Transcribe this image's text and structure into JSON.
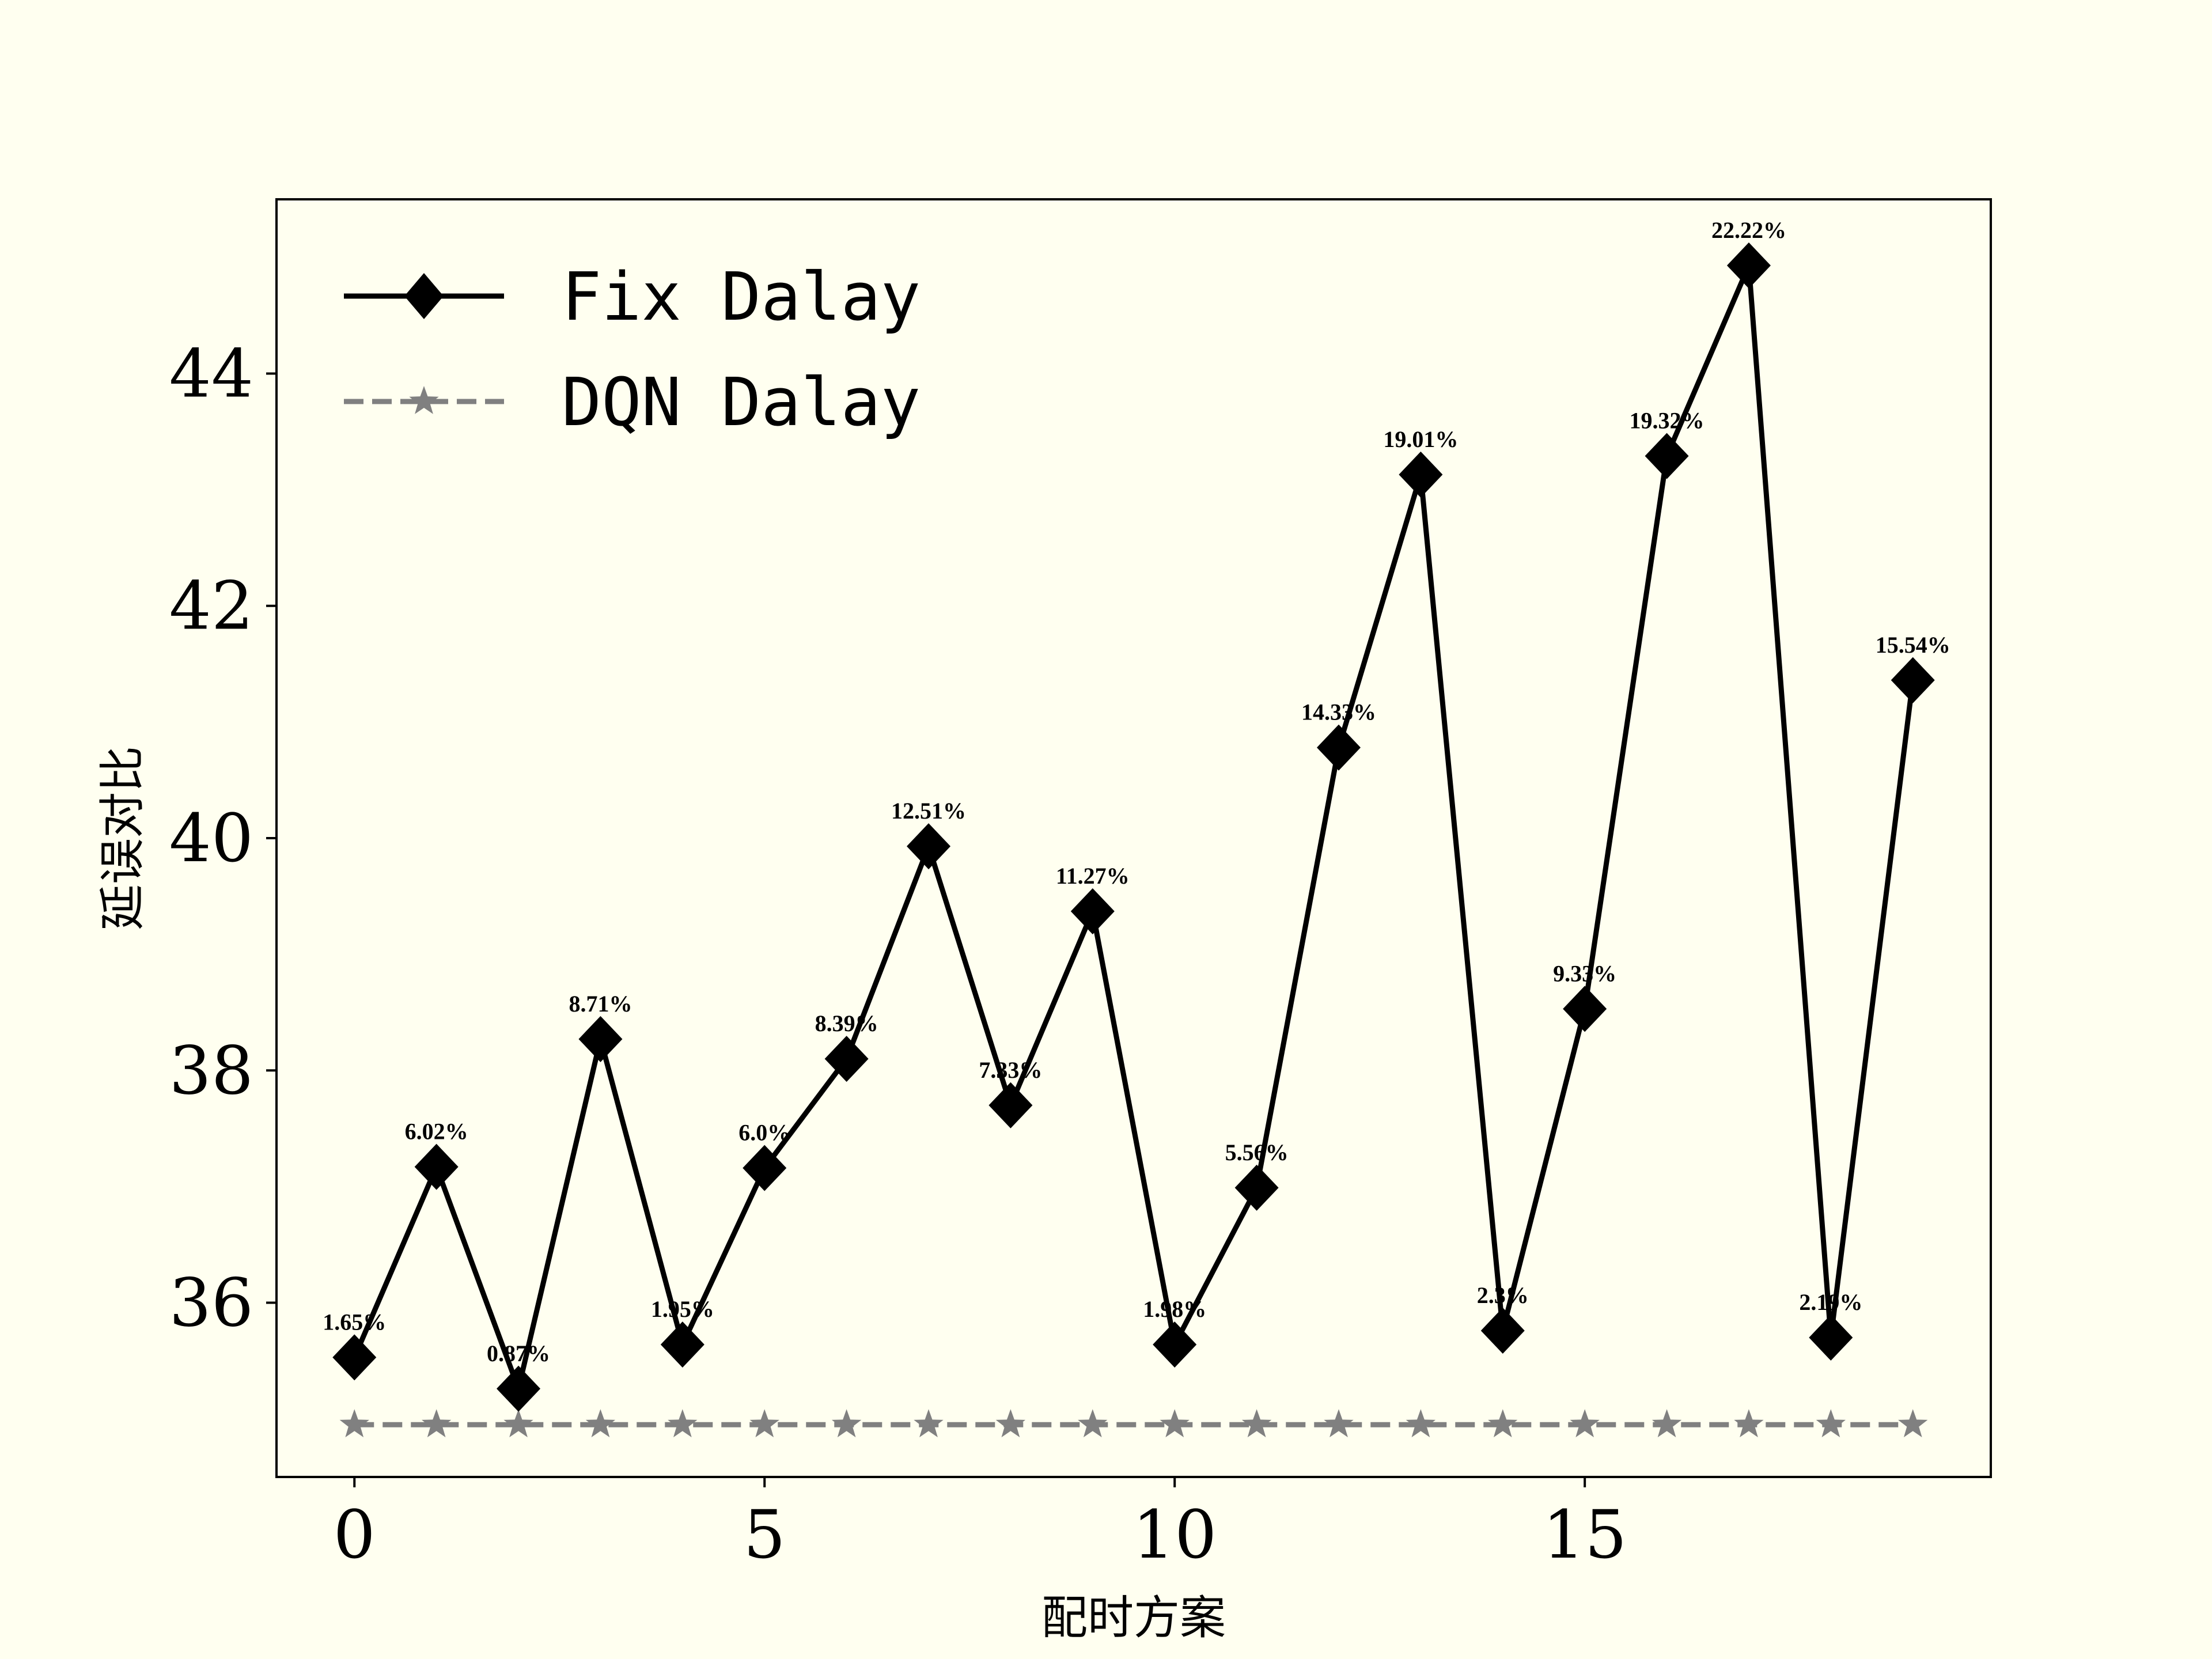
{
  "chart_data": {
    "type": "line",
    "title": "",
    "xlabel": "配时方案",
    "ylabel": "延误对比",
    "xlim": [
      -0.95,
      19.95
    ],
    "ylim": [
      34.5,
      45.5
    ],
    "xticks": [
      0,
      5,
      10,
      15
    ],
    "xtick_labels": [
      "0",
      "5",
      "10",
      "15"
    ],
    "yticks": [
      36,
      38,
      40,
      42,
      44
    ],
    "ytick_labels": [
      "36",
      "38",
      "40",
      "42",
      "44"
    ],
    "legend_position": "top-left",
    "x": [
      0,
      1,
      2,
      3,
      4,
      5,
      6,
      7,
      8,
      9,
      10,
      11,
      12,
      13,
      14,
      15,
      16,
      17,
      18,
      19
    ],
    "series": [
      {
        "name": "Fix Dalay",
        "color": "#000000",
        "marker": "diamond",
        "line_style": "solid",
        "values": [
          35.53,
          37.17,
          35.26,
          38.27,
          35.64,
          37.16,
          38.1,
          39.93,
          37.7,
          39.37,
          35.64,
          36.99,
          40.78,
          43.13,
          35.76,
          38.53,
          43.29,
          44.93,
          35.7,
          41.36
        ],
        "labels": [
          "1.65%",
          "6.02%",
          "0.87%",
          "8.71%",
          "1.95%",
          "6.0%",
          "8.39%",
          "12.51%",
          "7.33%",
          "11.27%",
          "1.98%",
          "5.56%",
          "14.33%",
          "19.01%",
          "2.3%",
          "9.33%",
          "19.32%",
          "22.22%",
          "2.19%",
          "15.54%"
        ]
      },
      {
        "name": "DQN Dalay",
        "color": "#808080",
        "marker": "star",
        "line_style": "dashed",
        "values": [
          34.95,
          34.95,
          34.95,
          34.95,
          34.95,
          34.95,
          34.95,
          34.95,
          34.95,
          34.95,
          34.95,
          34.95,
          34.95,
          34.95,
          34.95,
          34.95,
          34.95,
          34.95,
          34.95,
          34.95
        ]
      }
    ]
  }
}
